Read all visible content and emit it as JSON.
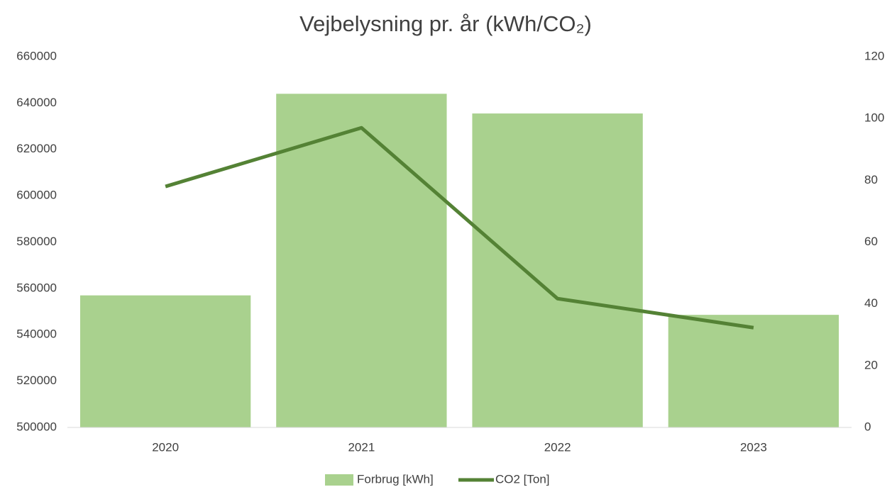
{
  "chart_data": {
    "type": "bar",
    "title": "Vejbelysning pr. år (kWh/CO₂)",
    "categories": [
      "2020",
      "2021",
      "2022",
      "2023"
    ],
    "series": [
      {
        "name": "Forbrug [kWh]",
        "type": "bar",
        "color": "#a9d18e",
        "values": [
          557000,
          644000,
          635500,
          548600
        ]
      },
      {
        "name": "CO2 [Ton]",
        "type": "line",
        "axis": "y2",
        "color": "#548235",
        "values": [
          78,
          97,
          41.7,
          32.3
        ]
      }
    ],
    "ylim": [
      500000,
      660000
    ],
    "yticks": [
      500000,
      520000,
      540000,
      560000,
      580000,
      600000,
      620000,
      640000,
      660000
    ],
    "y2lim": [
      0,
      120
    ],
    "y2ticks": [
      0,
      20,
      40,
      60,
      80,
      100,
      120
    ],
    "grid": false,
    "legend": "bottom"
  }
}
